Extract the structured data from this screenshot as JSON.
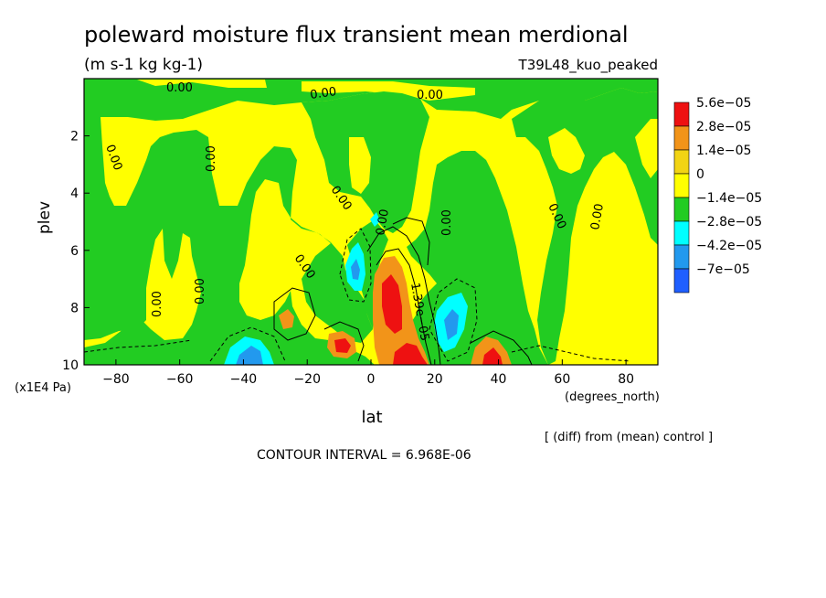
{
  "chart_data": {
    "type": "heatmap",
    "title": "poleward moisture flux transient mean merdional",
    "units": "(m s-1 kg kg-1)",
    "run_label": "T39L48_kuo_peaked",
    "xlabel": "lat",
    "x_units": "(degrees_north)",
    "ylabel": "plev",
    "y_units": "(x1E4 Pa)",
    "xlim": [
      -90,
      90
    ],
    "ylim": [
      0,
      10
    ],
    "y_inverted": true,
    "x_ticks": [
      -80,
      -60,
      -40,
      -20,
      0,
      20,
      40,
      60,
      80
    ],
    "x_tick_labels": [
      "−80",
      "−60",
      "−40",
      "−20",
      "0",
      "20",
      "40",
      "60",
      "80"
    ],
    "y_ticks": [
      2,
      4,
      6,
      8,
      10
    ],
    "y_tick_labels": [
      "2",
      "4",
      "6",
      "8",
      "10"
    ],
    "legend": {
      "placement": "right",
      "bins": [
        {
          "label": "5.6e−05",
          "color": "#ee1111"
        },
        {
          "label": "2.8e−05",
          "color": "#f29419"
        },
        {
          "label": "1.4e−05",
          "color": "#f2d414"
        },
        {
          "label": "0",
          "color": "#ffff00"
        },
        {
          "label": "−1.4e−05",
          "color": "#22cc22"
        },
        {
          "label": "−2.8e−05",
          "color": "#00ffff"
        },
        {
          "label": "−4.2e−05",
          "color": "#2299ee"
        },
        {
          "label": "−7e−05",
          "color": "#1f5fff"
        }
      ]
    },
    "contour_labels": [
      "0.00",
      "0.00",
      "0.00",
      "0.00",
      "0.00",
      "0.00",
      "0.00",
      "0.00",
      "0.00",
      "0.00",
      "0.00",
      "0.00",
      "0.00",
      "0.00",
      "1.39e−05"
    ],
    "regions": [
      {
        "kind": "positive-max",
        "lat": [
          5,
          12
        ],
        "plev": [
          6.5,
          9.0
        ],
        "bin": "5.6e-05"
      },
      {
        "kind": "positive-max",
        "lat": [
          12,
          20
        ],
        "plev": [
          8.8,
          10.0
        ],
        "bin": "5.6e-05"
      },
      {
        "kind": "positive-max",
        "lat": [
          -12,
          -6
        ],
        "plev": [
          9.0,
          9.6
        ],
        "bin": "5.6e-05"
      },
      {
        "kind": "positive",
        "lat": [
          33,
          42
        ],
        "plev": [
          9.0,
          10.0
        ],
        "bin": "2.8e-05"
      },
      {
        "kind": "positive",
        "lat": [
          -27,
          -22
        ],
        "plev": [
          8.0,
          8.7
        ],
        "bin": "2.8e-05"
      },
      {
        "kind": "negative",
        "lat": [
          -8,
          -2
        ],
        "plev": [
          6.0,
          7.5
        ],
        "bin": "-2.8e-05"
      },
      {
        "kind": "negative",
        "lat": [
          20,
          30
        ],
        "plev": [
          7.8,
          9.5
        ],
        "bin": "-2.8e-05"
      },
      {
        "kind": "negative",
        "lat": [
          -50,
          -35
        ],
        "plev": [
          9.2,
          10.0
        ],
        "bin": "-2.8e-05"
      }
    ]
  },
  "footer": {
    "diff_note": "[ (diff) from (mean) control ]",
    "contour_interval": "CONTOUR INTERVAL = 6.968E-06"
  },
  "colors": {
    "green": "#22cc22",
    "yellow": "#ffff00",
    "orange": "#f29419",
    "red": "#ee1111",
    "cyan": "#00ffff",
    "lightblue": "#2299ee"
  }
}
